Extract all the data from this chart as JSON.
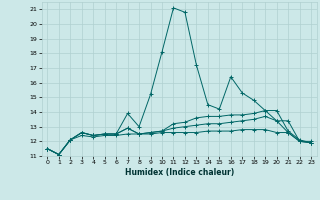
{
  "background_color": "#cce8e8",
  "grid_color": "#b0d0d0",
  "line_color": "#006666",
  "xlabel": "Humidex (Indice chaleur)",
  "xlim": [
    -0.5,
    23.5
  ],
  "ylim": [
    11,
    21.5
  ],
  "yticks": [
    11,
    12,
    13,
    14,
    15,
    16,
    17,
    18,
    19,
    20,
    21
  ],
  "xticks": [
    0,
    1,
    2,
    3,
    4,
    5,
    6,
    7,
    8,
    9,
    10,
    11,
    12,
    13,
    14,
    15,
    16,
    17,
    18,
    19,
    20,
    21,
    22,
    23
  ],
  "series": [
    [
      11.5,
      11.1,
      12.1,
      12.6,
      12.4,
      12.5,
      12.5,
      13.9,
      13.0,
      15.2,
      18.1,
      21.1,
      20.8,
      17.2,
      14.5,
      14.2,
      16.4,
      15.3,
      14.8,
      14.1,
      14.1,
      12.7,
      12.1,
      11.9
    ],
    [
      11.5,
      11.1,
      12.1,
      12.6,
      12.4,
      12.5,
      12.5,
      12.9,
      12.5,
      12.6,
      12.7,
      13.2,
      13.3,
      13.6,
      13.7,
      13.7,
      13.8,
      13.8,
      13.9,
      14.1,
      13.4,
      13.4,
      12.0,
      12.0
    ],
    [
      11.5,
      11.1,
      12.1,
      12.6,
      12.4,
      12.5,
      12.5,
      12.9,
      12.5,
      12.6,
      12.7,
      12.9,
      13.0,
      13.1,
      13.2,
      13.2,
      13.3,
      13.4,
      13.5,
      13.7,
      13.4,
      12.6,
      12.0,
      11.9
    ],
    [
      11.5,
      11.1,
      12.1,
      12.4,
      12.3,
      12.4,
      12.4,
      12.5,
      12.5,
      12.5,
      12.6,
      12.6,
      12.6,
      12.6,
      12.7,
      12.7,
      12.7,
      12.8,
      12.8,
      12.8,
      12.6,
      12.6,
      12.0,
      11.9
    ]
  ],
  "marker": "+"
}
